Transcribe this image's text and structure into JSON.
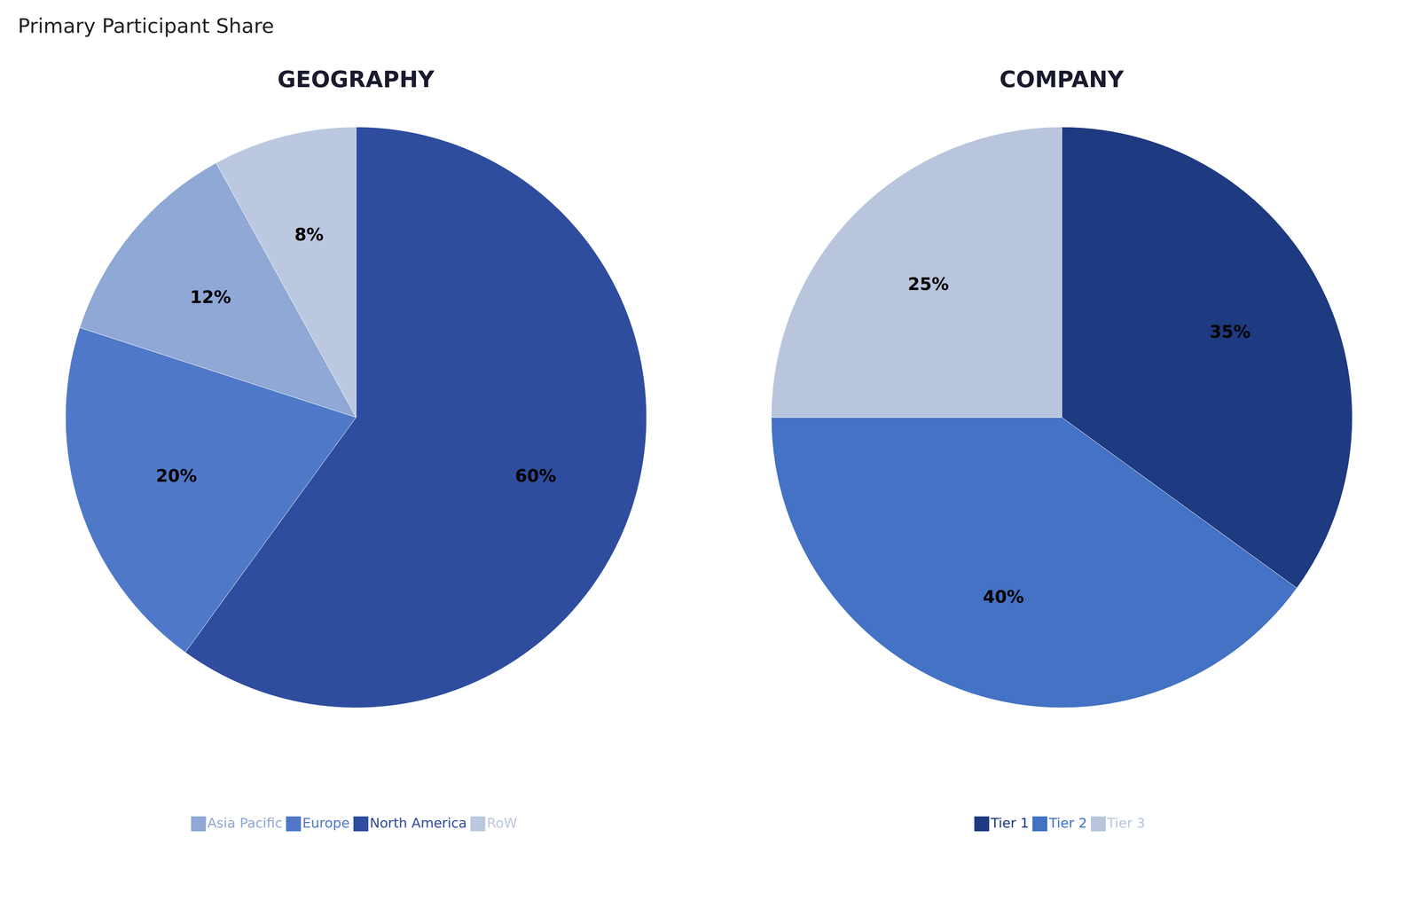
{
  "title": "Primary Participant Share",
  "chart_data": [
    {
      "type": "pie",
      "title": "GEOGRAPHY",
      "categories": [
        "North America",
        "Europe",
        "Asia Pacific",
        "RoW"
      ],
      "values": [
        60,
        20,
        12,
        8
      ],
      "value_labels": [
        "60%",
        "20%",
        "12%",
        "8%"
      ],
      "colors": [
        "#2e4d9e",
        "#4f79c8",
        "#8fa8d5",
        "#bcc8e0"
      ],
      "data_labels": true,
      "legend": "bottom"
    },
    {
      "type": "pie",
      "title": "COMPANY",
      "categories": [
        "Tier 1",
        "Tier 2",
        "Tier 3"
      ],
      "values": [
        35,
        40,
        25
      ],
      "value_labels": [
        "35%",
        "40%",
        "25%"
      ],
      "colors": [
        "#1e3a80",
        "#4472c4",
        "#b8c5dc"
      ],
      "data_labels": true,
      "legend": "bottom"
    }
  ]
}
